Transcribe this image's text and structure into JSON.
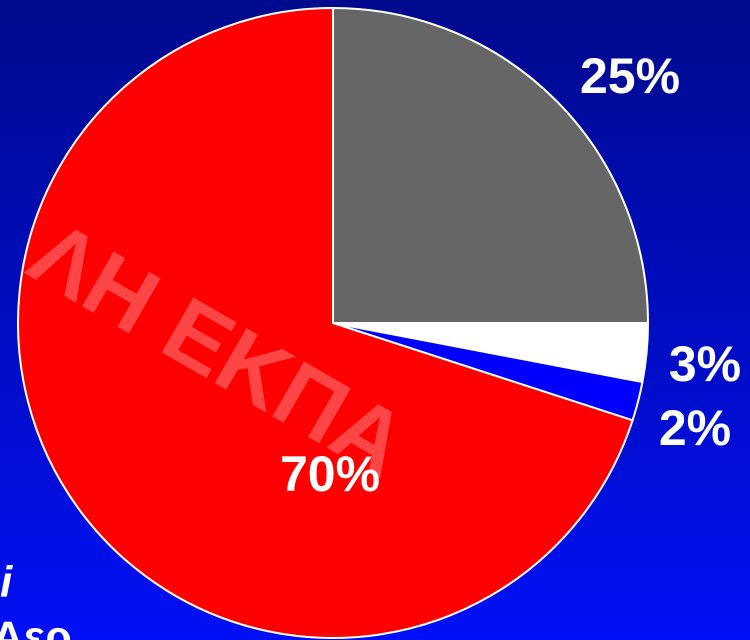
{
  "chart_data": {
    "type": "pie",
    "categories": [
      null,
      null,
      null,
      null
    ],
    "values": [
      25,
      3,
      2,
      70
    ],
    "value_labels": [
      "25%",
      "3%",
      "2%",
      "70%"
    ],
    "colors": [
      "#666666",
      "#ffffff",
      "#0000ff",
      "#ff0000"
    ],
    "start_angle": 0,
    "direction": "clockwise",
    "annotations": [
      "ΛΗ ΕΚΠΑ",
      "i",
      "Αερ"
    ]
  }
}
